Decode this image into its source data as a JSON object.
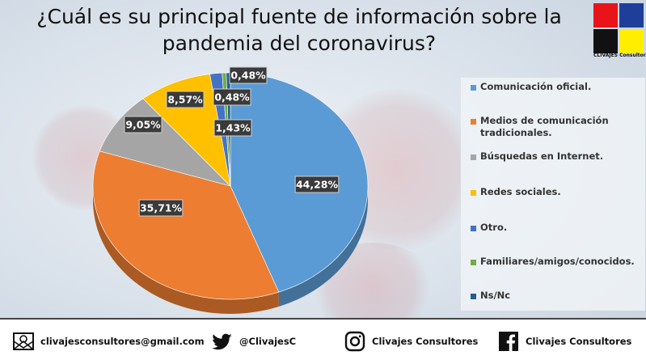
{
  "title": "¿Cuál es su principal fuente de información sobre la pandemia del coronavirus?",
  "logo": {
    "name": "CLIVAJES Consultores",
    "colors": [
      "#e8141a",
      "#1d3f9a",
      "#111111",
      "#ffee00"
    ]
  },
  "chart_data": {
    "type": "pie",
    "categories": [
      "Comunicación oficial.",
      "Medios de comunicación\ntradicionales.",
      "Búsquedas en Internet.",
      "Redes sociales.",
      "Otro.",
      "Familiares/amigos/conocidos.",
      "Ns/Nc"
    ],
    "values": [
      44.28,
      35.71,
      9.05,
      8.57,
      1.43,
      0.48,
      0.48
    ],
    "labels": [
      "44,28%",
      "35,71%",
      "9,05%",
      "8,57%",
      "1,43%",
      "0,48%",
      "0,48%"
    ],
    "colors": [
      "#5b9bd5",
      "#ed7d31",
      "#a5a5a5",
      "#ffc000",
      "#4472c4",
      "#70ad47",
      "#255e91"
    ],
    "legend_position": "right"
  },
  "footer": {
    "email": "clivajesconsultores@gmail.com",
    "twitter": "@ClivajesC",
    "instagram": "Clivajes Consultores",
    "facebook": "Clivajes Consultores",
    "icons": [
      "email-icon",
      "twitter-icon",
      "instagram-icon",
      "facebook-icon"
    ]
  }
}
